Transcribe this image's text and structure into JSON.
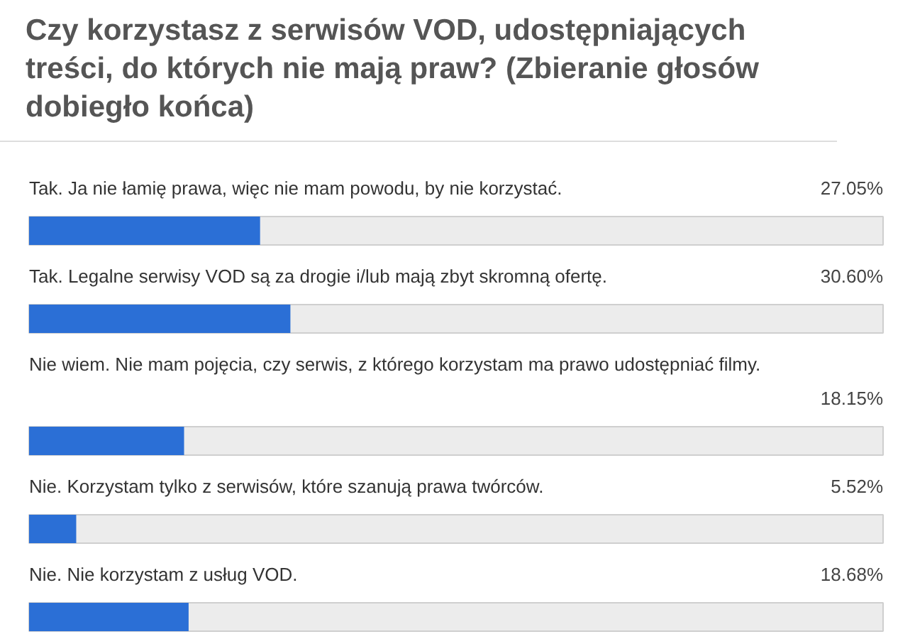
{
  "chart_data": {
    "type": "bar",
    "orientation": "horizontal",
    "title": "Czy korzystasz z serwisów VOD, udostępniających treści, do których nie mają praw? (Zbieranie głosów dobiegło końca)",
    "categories": [
      "Tak. Ja nie łamię prawa, więc nie mam powodu, by nie korzystać.",
      "Tak. Legalne serwisy VOD są za drogie i/lub mają zbyt skromną ofertę.",
      "Nie wiem. Nie mam pojęcia, czy serwis, z którego korzystam ma prawo udostępniać filmy.",
      "Nie. Korzystam tylko z serwisów, które szanują prawa twórców.",
      "Nie. Nie korzystam z usług VOD."
    ],
    "values": [
      27.05,
      30.6,
      18.15,
      5.52,
      18.68
    ],
    "value_labels": [
      "27.05%",
      "30.60%",
      "18.15%",
      "5.52%",
      "18.68%"
    ],
    "color": "#2b6fd6",
    "xlim": [
      0,
      100
    ],
    "tick_labels": false,
    "grid": false
  }
}
